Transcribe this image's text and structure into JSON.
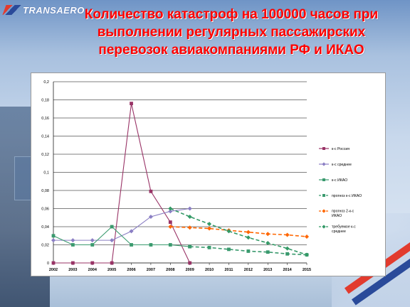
{
  "header": {
    "logo_text": "TRANSAERO",
    "title_lines": [
      "Количество катастроф на 100000 часов при",
      "выполнении регулярных пассажирских",
      "перевозок авиакомпаниями  РФ и ИКАО"
    ]
  },
  "chart_data": {
    "type": "line",
    "x": [
      "2002",
      "2003",
      "2004",
      "2005",
      "2006",
      "2007",
      "2008",
      "2009",
      "2010",
      "2011",
      "2012",
      "2013",
      "2014",
      "2015"
    ],
    "ylim": [
      0,
      0.2
    ],
    "yticks": [
      "0",
      "0,02",
      "0,04",
      "0,06",
      "0,08",
      "0,1",
      "0,12",
      "0,14",
      "0,16",
      "0,18",
      "0,2"
    ],
    "grid": true,
    "legend_position": "right",
    "series": [
      {
        "name": "к-с Россия",
        "color": "#993366",
        "style": "solid",
        "marker": "square",
        "values": [
          0,
          0,
          0,
          0,
          0.176,
          0.079,
          0.045,
          0,
          null,
          null,
          null,
          null,
          null,
          null
        ]
      },
      {
        "name": "к-с среднее",
        "color": "#8b7fc4",
        "style": "solid",
        "marker": "diamond",
        "values": [
          0.025,
          0.025,
          0.025,
          0.025,
          0.035,
          0.051,
          0.057,
          0.06,
          null,
          null,
          null,
          null,
          null,
          null
        ]
      },
      {
        "name": "к-с ИКАО",
        "color": "#3a9a6e",
        "style": "solid",
        "marker": "square",
        "values": [
          0.03,
          0.02,
          0.02,
          0.04,
          0.02,
          0.02,
          0.02,
          0.018,
          null,
          null,
          null,
          null,
          null,
          null
        ]
      },
      {
        "name": "прогноз к-с ИКАО",
        "color": "#3a9a6e",
        "style": "dashed",
        "marker": "square",
        "values": [
          null,
          null,
          null,
          null,
          null,
          null,
          null,
          0.018,
          0.017,
          0.015,
          0.013,
          0.012,
          0.01,
          0.009
        ]
      },
      {
        "name": "прогноз 2-к-с ИКАО",
        "color": "#ff6600",
        "style": "dashed",
        "marker": "diamond",
        "values": [
          null,
          null,
          null,
          null,
          null,
          null,
          0.04,
          0.039,
          0.038,
          0.036,
          0.034,
          0.032,
          0.031,
          0.029
        ]
      },
      {
        "name": "требуемое к-с среднее",
        "color": "#339966",
        "style": "dashed",
        "marker": "diamond",
        "values": [
          null,
          null,
          null,
          null,
          null,
          null,
          0.06,
          0.051,
          0.043,
          0.035,
          0.028,
          0.022,
          0.016,
          0.009
        ]
      }
    ]
  }
}
